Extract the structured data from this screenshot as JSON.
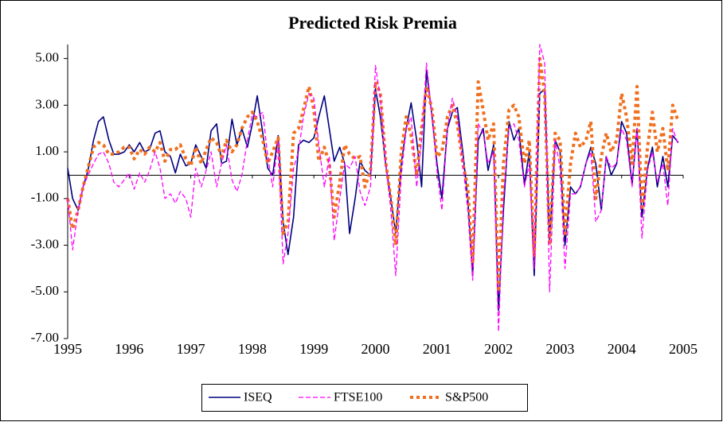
{
  "chart_data": {
    "type": "line",
    "title": "Predicted Risk Premia",
    "x": [
      1995,
      1995.08,
      1995.17,
      1995.25,
      1995.33,
      1995.42,
      1995.5,
      1995.58,
      1995.67,
      1995.75,
      1995.83,
      1995.92,
      1996,
      1996.08,
      1996.17,
      1996.25,
      1996.33,
      1996.42,
      1996.5,
      1996.58,
      1996.67,
      1996.75,
      1996.83,
      1996.92,
      1997,
      1997.08,
      1997.17,
      1997.25,
      1997.33,
      1997.42,
      1997.5,
      1997.58,
      1997.67,
      1997.75,
      1997.83,
      1997.92,
      1998,
      1998.08,
      1998.17,
      1998.25,
      1998.33,
      1998.42,
      1998.5,
      1998.58,
      1998.67,
      1998.75,
      1998.83,
      1998.92,
      1999,
      1999.08,
      1999.17,
      1999.25,
      1999.33,
      1999.42,
      1999.5,
      1999.58,
      1999.67,
      1999.75,
      1999.83,
      1999.92,
      2000,
      2000.08,
      2000.17,
      2000.25,
      2000.33,
      2000.42,
      2000.5,
      2000.58,
      2000.67,
      2000.75,
      2000.83,
      2000.92,
      2001,
      2001.08,
      2001.17,
      2001.25,
      2001.33,
      2001.42,
      2001.5,
      2001.58,
      2001.67,
      2001.75,
      2001.83,
      2001.92,
      2002,
      2002.08,
      2002.17,
      2002.25,
      2002.33,
      2002.42,
      2002.5,
      2002.58,
      2002.67,
      2002.75,
      2002.83,
      2002.92,
      2003,
      2003.08,
      2003.17,
      2003.25,
      2003.33,
      2003.42,
      2003.5,
      2003.58,
      2003.67,
      2003.75,
      2003.83,
      2003.92,
      2004,
      2004.08,
      2004.17,
      2004.25,
      2004.33,
      2004.42,
      2004.5,
      2004.58,
      2004.67,
      2004.75,
      2004.83,
      2004.92
    ],
    "series": [
      {
        "name": "ISEQ",
        "color": "#000080",
        "dash": "solid",
        "values": [
          0.3,
          -1.0,
          -1.5,
          -0.5,
          0.2,
          1.5,
          2.3,
          2.5,
          1.5,
          0.9,
          0.9,
          1.0,
          1.3,
          1.0,
          1.4,
          1.0,
          1.1,
          1.8,
          1.9,
          1.0,
          0.8,
          0.1,
          0.9,
          0.4,
          0.5,
          1.3,
          0.8,
          0.3,
          1.9,
          2.2,
          0.5,
          0.6,
          2.4,
          1.3,
          2.0,
          1.2,
          2.2,
          3.4,
          1.8,
          0.3,
          0.0,
          1.7,
          -2.0,
          -3.4,
          -1.8,
          1.3,
          1.5,
          1.4,
          1.6,
          2.5,
          3.4,
          2.0,
          0.6,
          1.2,
          0.5,
          -2.5,
          -1.0,
          0.6,
          0.2,
          0.0,
          3.7,
          2.5,
          0.4,
          -1.0,
          -2.5,
          0.5,
          2.0,
          3.1,
          1.5,
          -0.5,
          4.5,
          2.5,
          0.5,
          -1.0,
          2.0,
          2.7,
          2.9,
          1.0,
          -1.0,
          -4.3,
          1.5,
          2.0,
          0.2,
          1.3,
          -5.8,
          -1.5,
          2.3,
          1.5,
          2.0,
          -0.4,
          1.0,
          -4.3,
          3.5,
          3.7,
          -2.8,
          1.5,
          1.0,
          -3.0,
          -0.5,
          -0.8,
          -0.5,
          0.5,
          1.2,
          0.5,
          -1.5,
          0.8,
          0.0,
          0.5,
          2.3,
          1.8,
          -0.4,
          2.0,
          -1.8,
          0.3,
          1.2,
          -0.5,
          0.8,
          -0.5,
          1.7,
          1.4
        ]
      },
      {
        "name": "FTSE100",
        "color": "#ff00ff",
        "dash": "dashed",
        "values": [
          -1.0,
          -3.2,
          -1.5,
          -0.5,
          0.0,
          0.5,
          0.9,
          1.0,
          0.5,
          -0.3,
          -0.5,
          -0.2,
          0.1,
          -0.6,
          0.1,
          -0.3,
          0.2,
          1.0,
          0.3,
          -1.0,
          -0.8,
          -1.2,
          -0.7,
          -1.0,
          -1.8,
          0.3,
          -0.5,
          0.2,
          1.0,
          -0.5,
          0.5,
          1.3,
          -0.2,
          -0.7,
          0.0,
          1.5,
          2.6,
          2.5,
          2.7,
          0.8,
          -0.5,
          1.5,
          -3.8,
          -2.5,
          0.3,
          1.0,
          2.5,
          3.5,
          3.3,
          1.3,
          -0.5,
          0.8,
          -2.8,
          -1.0,
          0.5,
          0.3,
          0.8,
          -0.7,
          -1.3,
          -0.5,
          4.7,
          3.3,
          0.5,
          -1.5,
          -4.3,
          0.0,
          2.0,
          2.5,
          -0.5,
          1.5,
          4.8,
          2.5,
          0.2,
          -1.5,
          2.0,
          3.3,
          2.5,
          0.5,
          -1.5,
          -4.5,
          2.2,
          1.8,
          0.5,
          1.0,
          -6.7,
          -1.0,
          2.0,
          2.2,
          1.5,
          -0.5,
          0.5,
          -4.0,
          5.6,
          4.8,
          -5.0,
          1.5,
          0.3,
          -4.0,
          -0.8,
          -0.8,
          -0.5,
          0.5,
          1.0,
          -2.0,
          -1.5,
          0.8,
          0.3,
          0.5,
          2.0,
          1.5,
          -0.5,
          2.0,
          -2.7,
          0.2,
          1.0,
          -0.3,
          0.5,
          -1.3,
          2.0,
          1.3
        ]
      },
      {
        "name": "S&P500",
        "color": "#f07020",
        "dash": "dotted",
        "values": [
          -1.0,
          -2.3,
          -1.5,
          -0.5,
          0.3,
          1.2,
          1.4,
          1.3,
          0.9,
          0.9,
          1.0,
          1.2,
          1.2,
          0.7,
          1.1,
          0.9,
          1.2,
          1.0,
          1.4,
          0.6,
          1.1,
          1.1,
          1.3,
          0.7,
          0.4,
          1.2,
          0.5,
          1.1,
          1.6,
          1.4,
          0.8,
          1.5,
          1.0,
          1.3,
          2.0,
          2.5,
          2.7,
          2.3,
          1.5,
          0.5,
          1.0,
          1.6,
          -2.5,
          -2.0,
          1.8,
          2.0,
          2.8,
          3.8,
          2.8,
          0.6,
          1.2,
          0.5,
          -1.8,
          -0.3,
          1.3,
          0.9,
          0.7,
          0.8,
          -0.5,
          0.2,
          4.0,
          3.5,
          0.5,
          -1.0,
          -3.0,
          1.0,
          2.5,
          1.7,
          0.0,
          2.0,
          3.8,
          2.8,
          0.8,
          1.0,
          2.5,
          3.0,
          2.2,
          0.5,
          -0.5,
          -3.8,
          4.0,
          2.8,
          1.5,
          2.2,
          -5.0,
          0.5,
          2.8,
          3.0,
          2.5,
          0.5,
          1.5,
          -3.5,
          5.0,
          3.5,
          -3.0,
          1.8,
          1.5,
          -2.5,
          0.5,
          1.8,
          1.2,
          1.5,
          2.3,
          -1.0,
          0.8,
          1.8,
          1.0,
          1.5,
          3.5,
          2.5,
          0.5,
          3.8,
          -1.5,
          1.2,
          2.7,
          1.0,
          2.0,
          0.2,
          3.0,
          2.3
        ]
      }
    ],
    "xlim": [
      1995,
      2005
    ],
    "xticks": [
      1995,
      1996,
      1997,
      1998,
      1999,
      2000,
      2001,
      2002,
      2003,
      2004,
      2005
    ],
    "ylim": [
      -7,
      5.6
    ],
    "yticks": [
      {
        "value": 5,
        "label": "5.00"
      },
      {
        "value": 3,
        "label": "3.00"
      },
      {
        "value": 1,
        "label": "1.00"
      },
      {
        "value": -1,
        "label": "-1.00"
      },
      {
        "value": -3,
        "label": "-3.00"
      },
      {
        "value": -5,
        "label": "-5.00"
      },
      {
        "value": -7,
        "label": "-7.00"
      }
    ],
    "legend": "bottom",
    "grid": false
  }
}
